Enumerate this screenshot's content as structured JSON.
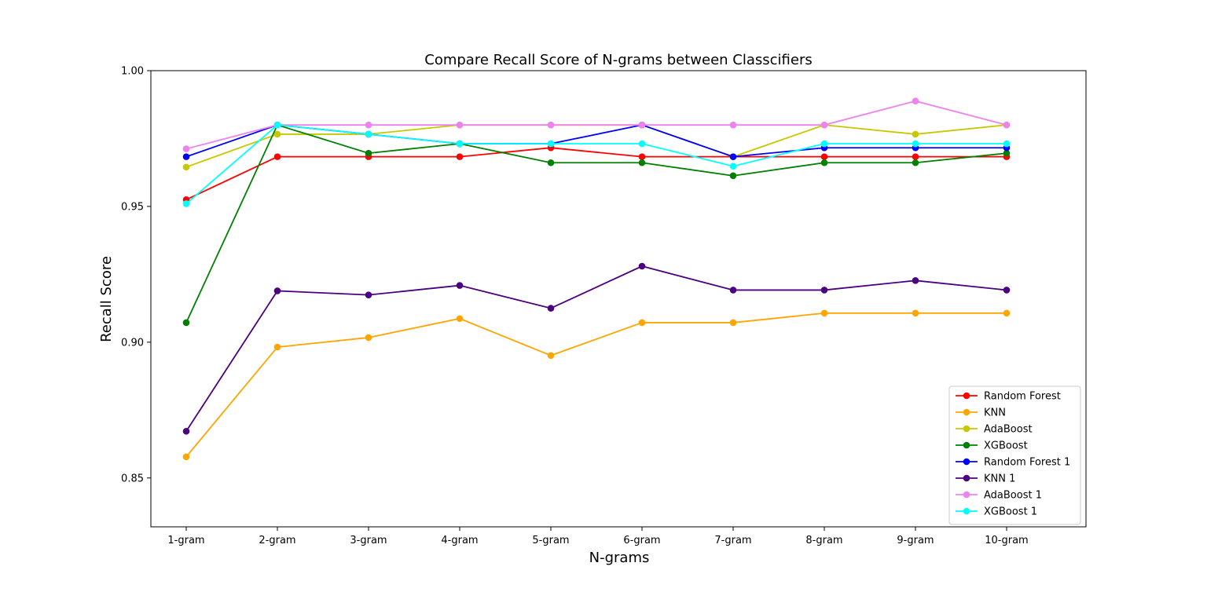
{
  "chart_data": {
    "type": "line",
    "title": "Compare Recall Score of N-grams between Classcifiers",
    "xlabel": "N-grams",
    "ylabel": "Recall Score",
    "categories": [
      "1-gram",
      "2-gram",
      "3-gram",
      "4-gram",
      "5-gram",
      "6-gram",
      "7-gram",
      "8-gram",
      "9-gram",
      "10-gram"
    ],
    "ylim": [
      0.832,
      1.0
    ],
    "yticks": [
      0.85,
      0.9,
      0.95,
      1.0
    ],
    "ytick_labels": [
      "0.85",
      "0.90",
      "0.95",
      "1.00"
    ],
    "grid": false,
    "legend": "lower-right",
    "series": [
      {
        "name": "Random Forest",
        "color": "#ff0000",
        "values": [
          0.9525,
          0.9683,
          0.9683,
          0.9683,
          0.9716,
          0.9683,
          0.9683,
          0.9683,
          0.9683,
          0.9683
        ]
      },
      {
        "name": "KNN",
        "color": "#ffa500",
        "values": [
          0.8578,
          0.8982,
          0.9017,
          0.9087,
          0.8951,
          0.9072,
          0.9072,
          0.9107,
          0.9107,
          0.9107
        ]
      },
      {
        "name": "AdaBoost",
        "color": "#c8c800",
        "values": [
          0.9645,
          0.9766,
          0.9766,
          0.98,
          0.98,
          0.98,
          0.9683,
          0.98,
          0.9766,
          0.98
        ]
      },
      {
        "name": "XGBoost",
        "color": "#008000",
        "values": [
          0.9072,
          0.98,
          0.9696,
          0.9731,
          0.9661,
          0.9661,
          0.9613,
          0.9661,
          0.9661,
          0.9696
        ]
      },
      {
        "name": "Random Forest 1",
        "color": "#0000ff",
        "values": [
          0.9683,
          0.98,
          0.9766,
          0.9731,
          0.9731,
          0.98,
          0.9683,
          0.9716,
          0.9716,
          0.9716
        ]
      },
      {
        "name": "KNN 1",
        "color": "#4b0082",
        "values": [
          0.8672,
          0.9189,
          0.9174,
          0.9209,
          0.9125,
          0.928,
          0.9192,
          0.9192,
          0.9227,
          0.9192
        ]
      },
      {
        "name": "AdaBoost 1",
        "color": "#ee82ee",
        "values": [
          0.9712,
          0.98,
          0.98,
          0.98,
          0.98,
          0.98,
          0.98,
          0.98,
          0.9888,
          0.98
        ]
      },
      {
        "name": "XGBoost 1",
        "color": "#00ffff",
        "values": [
          0.951,
          0.98,
          0.9766,
          0.9731,
          0.9731,
          0.9731,
          0.9648,
          0.9731,
          0.9731,
          0.9731
        ]
      }
    ]
  }
}
